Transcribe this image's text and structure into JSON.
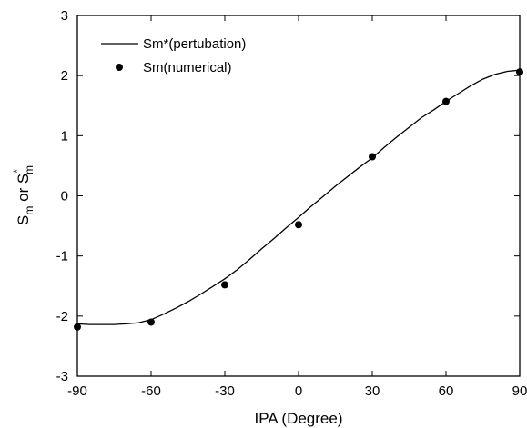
{
  "chart_data": {
    "type": "line",
    "xlabel": "IPA  (Degree)",
    "ylabel": "S_m or S*_m",
    "xlim": [
      -90,
      90
    ],
    "ylim": [
      -3,
      3
    ],
    "x_ticks": [
      -90,
      -60,
      -30,
      0,
      30,
      60,
      90
    ],
    "y_ticks": [
      -3,
      -2,
      -1,
      0,
      1,
      2,
      3
    ],
    "x_tick_labels": [
      "-90",
      "-60",
      "-30",
      "0",
      "30",
      "60",
      "90"
    ],
    "y_tick_labels": [
      "-3",
      "-2",
      "-1",
      "0",
      "1",
      "2",
      "3"
    ],
    "legend_position": "top-left",
    "grid": false,
    "series": [
      {
        "name": "Sm*(pertubation)",
        "style": "line",
        "color": "#000000",
        "x": [
          -90,
          -85,
          -80,
          -75,
          -70,
          -65,
          -60,
          -55,
          -50,
          -45,
          -40,
          -35,
          -30,
          -25,
          -20,
          -15,
          -10,
          -5,
          0,
          5,
          10,
          15,
          20,
          25,
          30,
          35,
          40,
          45,
          50,
          55,
          60,
          65,
          70,
          75,
          80,
          85,
          90
        ],
        "y": [
          -2.13,
          -2.14,
          -2.14,
          -2.14,
          -2.13,
          -2.11,
          -2.06,
          -1.97,
          -1.87,
          -1.76,
          -1.64,
          -1.51,
          -1.38,
          -1.23,
          -1.06,
          -0.88,
          -0.71,
          -0.53,
          -0.36,
          -0.18,
          -0.01,
          0.16,
          0.32,
          0.48,
          0.63,
          0.81,
          0.98,
          1.14,
          1.3,
          1.43,
          1.57,
          1.7,
          1.83,
          1.94,
          2.02,
          2.07,
          2.09
        ]
      },
      {
        "name": "Sm(numerical)",
        "style": "markers",
        "color": "#000000",
        "x": [
          -90,
          -60,
          -30,
          0,
          30,
          60,
          90
        ],
        "y": [
          -2.18,
          -2.1,
          -1.48,
          -0.48,
          0.65,
          1.57,
          2.06
        ]
      }
    ]
  }
}
